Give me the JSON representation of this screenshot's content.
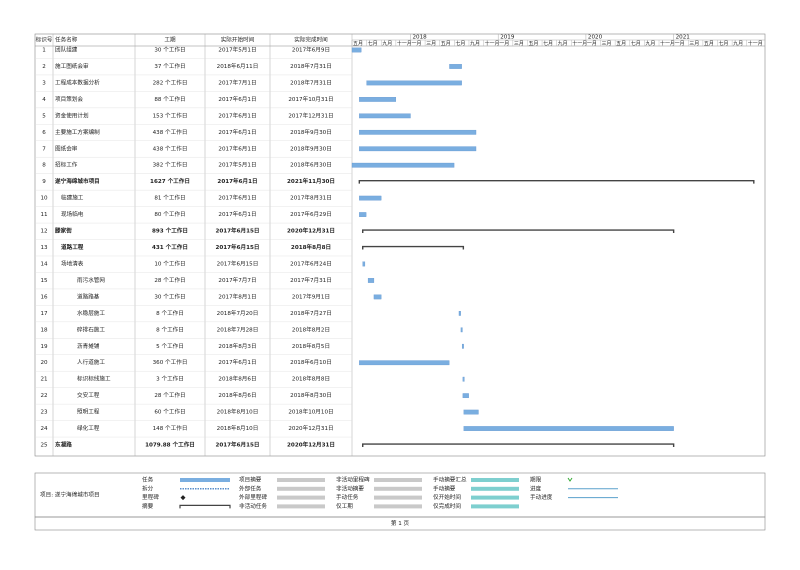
{
  "table": {
    "headers": [
      "标识号",
      "任务名称",
      "工期",
      "实际开始时间",
      "实际完成时间"
    ],
    "rows": [
      {
        "cells": [
          "1",
          "团队组建",
          "30 个工作日",
          "2017年5月1日",
          "2017年6月9日"
        ]
      },
      {
        "cells": [
          "2",
          "施工图纸会审",
          "37 个工作日",
          "2018年6月11日",
          "2018年7月31日"
        ]
      },
      {
        "cells": [
          "3",
          "工程成本数据分析",
          "282 个工作日",
          "2017年7月1日",
          "2018年7月31日"
        ]
      },
      {
        "cells": [
          "4",
          "项目策划会",
          "88 个工作日",
          "2017年6月1日",
          "2017年10月31日"
        ]
      },
      {
        "cells": [
          "5",
          "资金使用计划",
          "153 个工作日",
          "2017年6月1日",
          "2017年12月31日"
        ]
      },
      {
        "cells": [
          "6",
          "主要施工方案编制",
          "438 个工作日",
          "2017年6月1日",
          "2018年9月30日"
        ]
      },
      {
        "cells": [
          "7",
          "图纸会审",
          "438 个工作日",
          "2017年6月1日",
          "2018年9月30日"
        ]
      },
      {
        "cells": [
          "8",
          "招标工作",
          "382 个工作日",
          "2017年5月1日",
          "2018年6月30日"
        ]
      },
      {
        "cells": [
          "9",
          "遂宁海绵城市项目",
          "1627 个工作日",
          "2017年6月1日",
          "2021年11月30日"
        ],
        "summary": true
      },
      {
        "cells": [
          "10",
          "临建施工",
          "81 个工作日",
          "2017年6月1日",
          "2017年8月31日"
        ]
      },
      {
        "cells": [
          "11",
          "现场临电",
          "80 个工作日",
          "2017年6月1日",
          "2017年6月29日"
        ]
      },
      {
        "cells": [
          "12",
          "滕家街",
          "893 个工作日",
          "2017年6月15日",
          "2020年12月31日"
        ],
        "summary": true
      },
      {
        "cells": [
          "13",
          "道路工程",
          "431 个工作日",
          "2017年6月15日",
          "2018年8月8日"
        ],
        "summary": true
      },
      {
        "cells": [
          "14",
          "场地清表",
          "10 个工作日",
          "2017年6月15日",
          "2017年6月24日"
        ]
      },
      {
        "cells": [
          "15",
          "雨污水管网",
          "28 个工作日",
          "2017年7月7日",
          "2017年7月31日"
        ]
      },
      {
        "cells": [
          "16",
          "道路路基",
          "30 个工作日",
          "2017年8月1日",
          "2017年9月1日"
        ]
      },
      {
        "cells": [
          "17",
          "水稳层施工",
          "8 个工作日",
          "2018年7月20日",
          "2018年7月27日"
        ]
      },
      {
        "cells": [
          "18",
          "碎排石施工",
          "8 个工作日",
          "2018年7月28日",
          "2018年8月2日"
        ]
      },
      {
        "cells": [
          "19",
          "沥青摊铺",
          "5 个工作日",
          "2018年8月3日",
          "2018年8月5日"
        ]
      },
      {
        "cells": [
          "20",
          "人行道施工",
          "360 个工作日",
          "2017年6月1日",
          "2018年6月10日"
        ]
      },
      {
        "cells": [
          "21",
          "标识标线施工",
          "3 个工作日",
          "2018年8月6日",
          "2018年8月8日"
        ]
      },
      {
        "cells": [
          "22",
          "交安工程",
          "28 个工作日",
          "2018年8月6日",
          "2018年8月30日"
        ]
      },
      {
        "cells": [
          "23",
          "照明工程",
          "60 个工作日",
          "2018年8月10日",
          "2018年10月10日"
        ]
      },
      {
        "cells": [
          "24",
          "绿化工程",
          "148 个工作日",
          "2018年8月10日",
          "2020年12月31日"
        ]
      },
      {
        "cells": [
          "25",
          "东凝路",
          "1079.88 个工作日",
          "2017年6月15日",
          "2020年12月31日"
        ],
        "summary": true
      }
    ]
  },
  "timeline": {
    "years": [
      "2018",
      "2019",
      "2020",
      "2021"
    ],
    "months": [
      "五月",
      "七月",
      "九月",
      "十一月",
      "一月",
      "三月",
      "五月",
      "七月",
      "九月",
      "十一月",
      "一月",
      "三月",
      "五月",
      "七月",
      "九月",
      "十一月",
      "一月",
      "三月",
      "五月",
      "七月",
      "九月",
      "十一月",
      "一月",
      "三月",
      "五月",
      "七月",
      "九月",
      "十一月"
    ]
  },
  "legend": {
    "project": "项目: 遂宁海绵城市项目",
    "columns": [
      [
        "任务",
        "拆分",
        "里程碑",
        "摘要"
      ],
      [
        "项目摘要",
        "外部任务",
        "外部里程碑",
        "非活动任务"
      ],
      [
        "非活动里程碑",
        "非活动摘要",
        "手动任务",
        "仅工期"
      ],
      [
        "手动摘要汇总",
        "手动摘要",
        "仅开始时间",
        "仅完成时间"
      ],
      [
        "期限",
        "进度",
        "手动进度"
      ]
    ]
  },
  "footer": "第 1 页"
}
